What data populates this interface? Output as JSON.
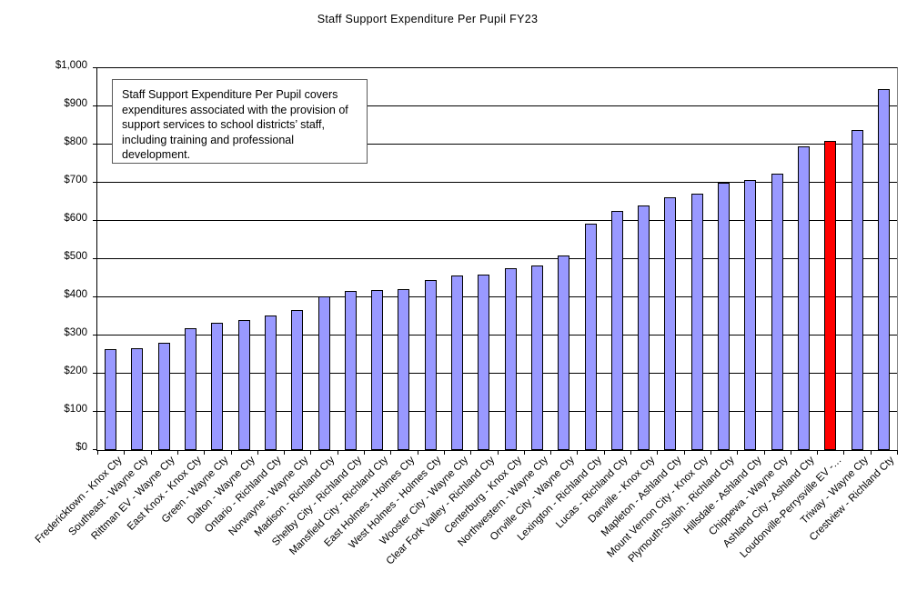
{
  "chart": {
    "title": "Staff Support Expenditure Per Pupil FY23",
    "note": "Staff Support Expenditure Per Pupil covers expenditures associated with the provision of support services to school districts’ staff, including training and professional development."
  },
  "chart_data": {
    "type": "bar",
    "title": "Staff Support Expenditure Per Pupil FY23",
    "xlabel": "",
    "ylabel": "",
    "ylim": [
      0,
      1000
    ],
    "ytick_step": 100,
    "ytick_labels": [
      "$0",
      "$100",
      "$200",
      "$300",
      "$400",
      "$500",
      "$600",
      "$700",
      "$800",
      "$900",
      "$1,000"
    ],
    "grid": true,
    "legend": "none",
    "bar_color": "#9999FF",
    "bar_border": "#000000",
    "highlight": {
      "index": 27,
      "color": "#FF0000"
    },
    "categories": [
      "Fredericktown - Knox Cty",
      "Southeast - Wayne Cty",
      "Rittman EV - Wayne Cty",
      "East Knox - Knox Cty",
      "Green - Wayne Cty",
      "Dalton - Wayne Cty",
      "Ontario - Richland Cty",
      "Norwayne - Wayne Cty",
      "Madison - Richland Cty",
      "Shelby City - Richland Cty",
      "Mansfield City - Richland Cty",
      "East Holmes - Holmes Cty",
      "West Holmes - Holmes Cty",
      "Wooster City - Wayne Cty",
      "Clear Fork Valley - Richland Cty",
      "Centerburg - Knox Cty",
      "Northwestern - Wayne Cty",
      "Orrville City - Wayne Cty",
      "Lexington - Richland Cty",
      "Lucas - Richland Cty",
      "Danville - Knox Cty",
      "Mapleton - Ashland Cty",
      "Mount Vernon City - Knox Cty",
      "Plymouth-Shiloh - Richland Cty",
      "Hillsdale - Ashland Cty",
      "Chippewa - Wayne Cty",
      "Ashland City - Ashland Cty",
      "Loudonville-Perrysville EV -…",
      "Triway - Wayne Cty",
      "Crestview - Richland Cty"
    ],
    "values": [
      265,
      266,
      280,
      318,
      333,
      340,
      353,
      367,
      403,
      417,
      419,
      421,
      445,
      457,
      460,
      476,
      483,
      510,
      593,
      627,
      640,
      663,
      671,
      700,
      706,
      724,
      795,
      809,
      838,
      945
    ],
    "annotation": "Staff Support Expenditure Per Pupil covers expenditures associated with the provision of support services to school districts’ staff, including training and professional development."
  }
}
